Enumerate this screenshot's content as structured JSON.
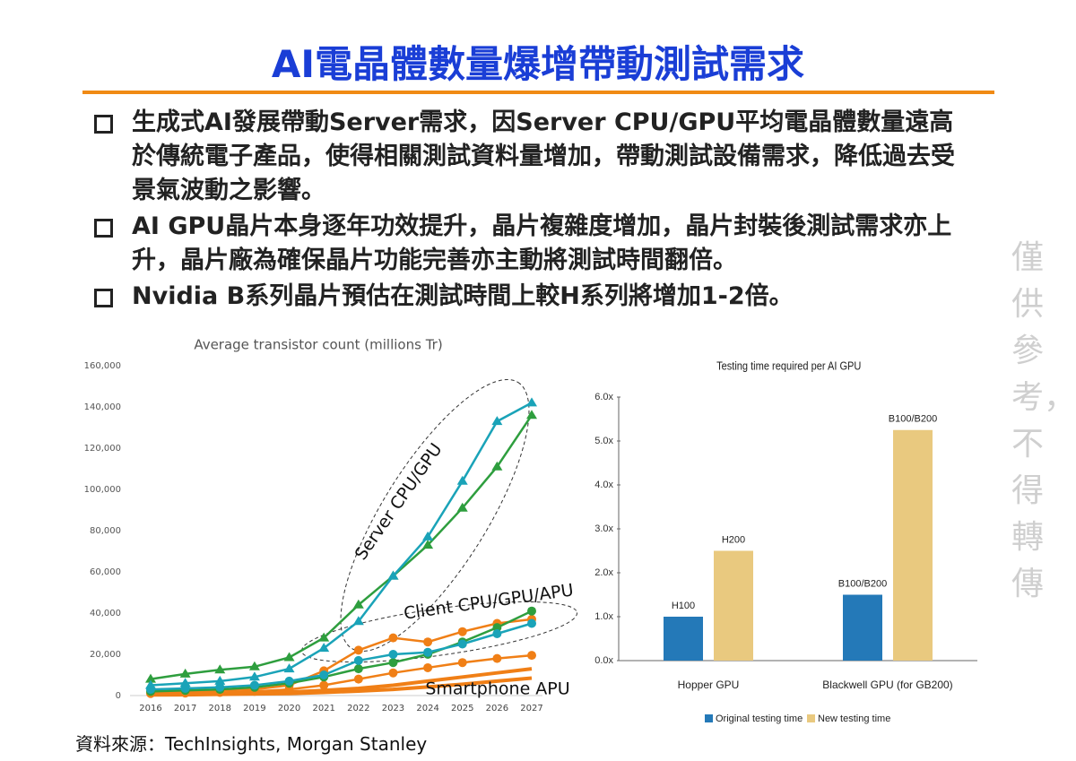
{
  "title": "AI電晶體數量爆增帶動測試需求",
  "bullets": [
    "生成式AI發展帶動Server需求，因Server CPU/GPU平均電晶體數量遠高於傳統電子產品，使得相關測試資料量增加，帶動測試設備需求，降低過去受景氣波動之影響。",
    "AI GPU晶片本身逐年功效提升，晶片複雜度增加，晶片封裝後測試需求亦上升，晶片廠為確保晶片功能完善亦主動將測試時間翻倍。",
    "Nvidia B系列晶片預估在測試時間上較H系列將增加1-2倍。"
  ],
  "source": "資料來源：TechInsights, Morgan Stanley",
  "watermark": "僅供參考，不得轉傳",
  "chart_data": [
    {
      "type": "line",
      "title": "Average transistor count (millions Tr)",
      "x": [
        2016,
        2017,
        2018,
        2019,
        2020,
        2021,
        2022,
        2023,
        2024,
        2025,
        2026,
        2027
      ],
      "xlim": [
        2016,
        2027
      ],
      "ylim": [
        0,
        160000
      ],
      "yticks": [
        0,
        {
          "value": 20000,
          "label": "20,000"
        },
        {
          "value": 40000,
          "label": "40,000"
        },
        {
          "value": 60000,
          "label": "60,000"
        },
        {
          "value": 80000,
          "label": "80,000"
        },
        {
          "value": 100000,
          "label": "100,000"
        },
        {
          "value": 120000,
          "label": "120,000"
        },
        {
          "value": 140000,
          "label": "140,000"
        },
        {
          "value": 160000,
          "label": "160,000"
        }
      ],
      "grid": false,
      "annotations": [
        "Server CPU/GPU",
        "Client CPU/GPU/APU",
        "Smartphone APU"
      ],
      "series": [
        {
          "color": "#1aa3b8",
          "marker": "triangle",
          "values": [
            5000,
            6000,
            7000,
            9000,
            13000,
            23000,
            36000,
            58000,
            77000,
            104000,
            133000,
            142000
          ]
        },
        {
          "color": "#2e9e3e",
          "marker": "triangle",
          "values": [
            8000,
            10500,
            12500,
            14000,
            18500,
            28000,
            44000,
            58000,
            73000,
            91000,
            111000,
            136000
          ]
        },
        {
          "color": "#1aa3b8",
          "marker": "circle",
          "values": [
            3000,
            3500,
            4000,
            5000,
            7000,
            10000,
            17000,
            20000,
            21000,
            25000,
            30000,
            35000
          ]
        },
        {
          "color": "#2e9e3e",
          "marker": "circle",
          "values": [
            2000,
            2500,
            3000,
            4000,
            6000,
            9000,
            13000,
            16000,
            20000,
            26000,
            33000,
            41000
          ]
        },
        {
          "color": "#f07f16",
          "marker": "circle",
          "values": [
            1500,
            2000,
            2500,
            3000,
            5000,
            12000,
            22000,
            28000,
            26000,
            31000,
            35000,
            37000
          ]
        },
        {
          "color": "#f07f16",
          "marker": "circle",
          "values": [
            1000,
            1200,
            1500,
            2000,
            3000,
            5000,
            8000,
            11000,
            13500,
            16000,
            18000,
            19500
          ]
        },
        {
          "color": "#f07f16",
          "marker": "none",
          "values": [
            500,
            700,
            1000,
            1300,
            1700,
            2500,
            3500,
            5000,
            7000,
            9000,
            11000,
            13000
          ]
        },
        {
          "color": "#f07f16",
          "marker": "none",
          "values": [
            300,
            400,
            600,
            800,
            1000,
            1500,
            2200,
            3000,
            4200,
            5500,
            7000,
            8500
          ]
        }
      ]
    },
    {
      "type": "bar",
      "title": "Testing time required per AI GPU",
      "categories": [
        "Hopper GPU",
        "Blackwell GPU (for GB200)"
      ],
      "ylim": [
        0,
        6
      ],
      "yticks": [
        {
          "value": 0,
          "label": "0.0x"
        },
        {
          "value": 1,
          "label": "1.0x"
        },
        {
          "value": 2,
          "label": "2.0x"
        },
        {
          "value": 3,
          "label": "3.0x"
        },
        {
          "value": 4,
          "label": "4.0x"
        },
        {
          "value": 5,
          "label": "5.0x"
        },
        {
          "value": 6,
          "label": "6.0x"
        }
      ],
      "legend": "bottom",
      "series": [
        {
          "name": "Original testing time",
          "color": "#2479b8",
          "values": [
            1.0,
            1.5
          ],
          "value_labels": [
            "H100",
            "B100/B200"
          ]
        },
        {
          "name": "New testing time",
          "color": "#e9c97f",
          "values": [
            2.5,
            5.25
          ],
          "value_labels": [
            "H200",
            "B100/B200"
          ]
        }
      ]
    }
  ]
}
